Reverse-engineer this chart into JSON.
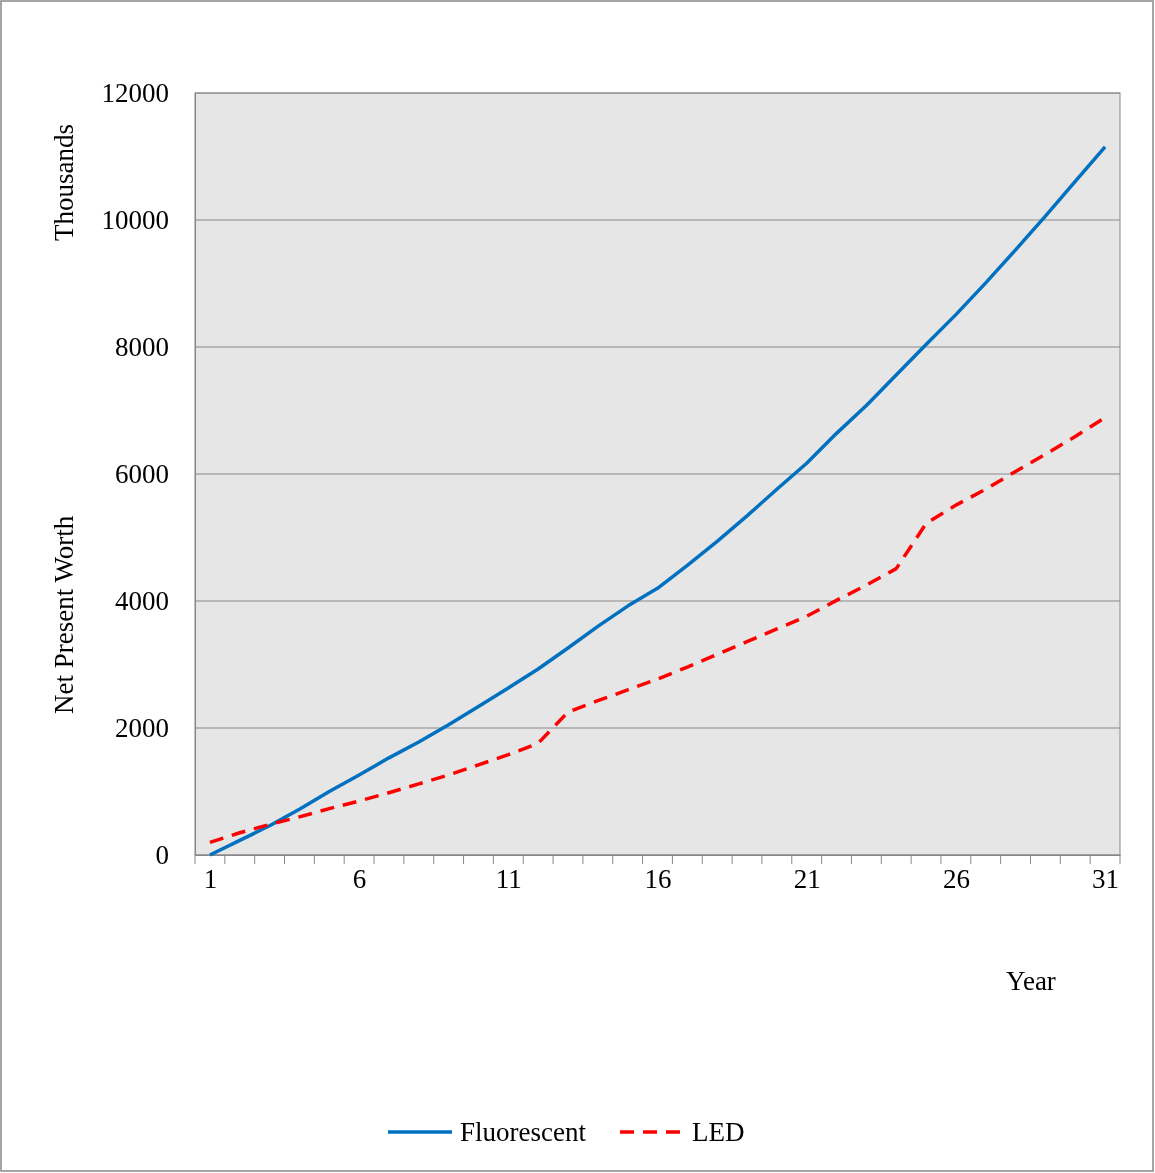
{
  "chart_data": {
    "type": "line",
    "xlabel": "Year",
    "ylabel": "Net Present Worth",
    "annotations": [
      "Thousands"
    ],
    "x": [
      1,
      2,
      3,
      4,
      5,
      6,
      7,
      8,
      9,
      10,
      11,
      12,
      13,
      14,
      15,
      16,
      17,
      18,
      19,
      20,
      21,
      22,
      23,
      24,
      25,
      26,
      27,
      28,
      29,
      30,
      31
    ],
    "xlim": [
      0.5,
      31.5
    ],
    "xticks": [
      1,
      6,
      11,
      16,
      21,
      26,
      31
    ],
    "series": [
      {
        "name": "Fluorescent",
        "color": "#0070c0",
        "line_style": "solid",
        "values": [
          0,
          230,
          460,
          720,
          1000,
          1260,
          1530,
          1780,
          2050,
          2340,
          2630,
          2930,
          3260,
          3600,
          3920,
          4200,
          4560,
          4940,
          5340,
          5760,
          6170,
          6640,
          7080,
          7560,
          8040,
          8510,
          9010,
          9530,
          10060,
          10610,
          11150
        ]
      },
      {
        "name": "LED",
        "color": "#ff0000",
        "line_style": "dashed",
        "values": [
          200,
          350,
          480,
          600,
          730,
          850,
          980,
          1120,
          1260,
          1420,
          1580,
          1760,
          2250,
          2430,
          2600,
          2770,
          2960,
          3160,
          3360,
          3560,
          3760,
          4010,
          4250,
          4510,
          5220,
          5510,
          5760,
          6040,
          6310,
          6590,
          6890
        ]
      }
    ],
    "ylim": [
      0,
      12000
    ],
    "yticks": [
      0,
      2000,
      4000,
      6000,
      8000,
      10000,
      12000
    ],
    "grid": "y",
    "legend": "bottom",
    "marker": "none"
  }
}
